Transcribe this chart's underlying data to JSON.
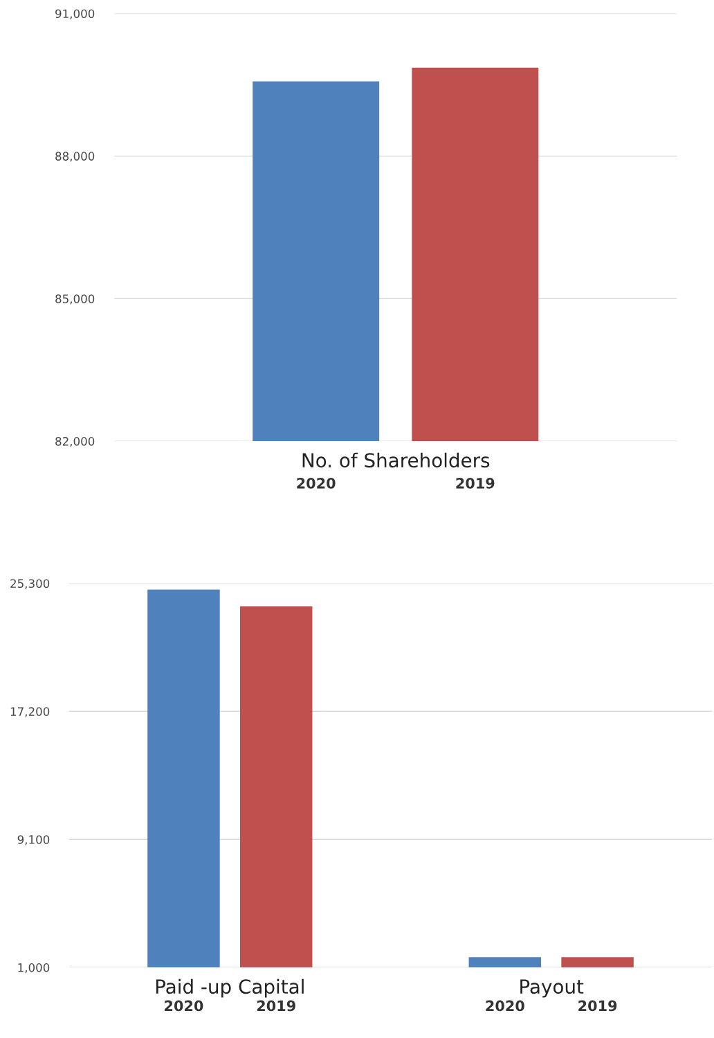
{
  "chart_data": [
    {
      "type": "bar",
      "categories": [
        "No. of Shareholders"
      ],
      "series": [
        {
          "name": "2020",
          "color": "#4f81bd",
          "values": [
            89570
          ]
        },
        {
          "name": "2019",
          "color": "#c0504d",
          "values": [
            89860
          ]
        }
      ],
      "ylim": [
        82000,
        91000
      ],
      "yticks": [
        {
          "value": 82000,
          "label": "82,000"
        },
        {
          "value": 85000,
          "label": "85,000"
        },
        {
          "value": 88000,
          "label": "88,000"
        },
        {
          "value": 91000,
          "label": "91,000"
        }
      ],
      "grid": "y",
      "legend": false
    },
    {
      "type": "bar",
      "categories": [
        "Paid -up Capital",
        "Payout"
      ],
      "series": [
        {
          "name": "2020",
          "color": "#4f81bd",
          "values": [
            24900,
            1650
          ]
        },
        {
          "name": "2019",
          "color": "#c0504d",
          "values": [
            23850,
            1650
          ]
        }
      ],
      "ylim": [
        1000,
        25300
      ],
      "yticks": [
        {
          "value": 1000,
          "label": "1,000"
        },
        {
          "value": 9100,
          "label": "9,100"
        },
        {
          "value": 17200,
          "label": "17,200"
        },
        {
          "value": 25300,
          "label": "25,300"
        }
      ],
      "grid": "y",
      "legend": false
    }
  ]
}
